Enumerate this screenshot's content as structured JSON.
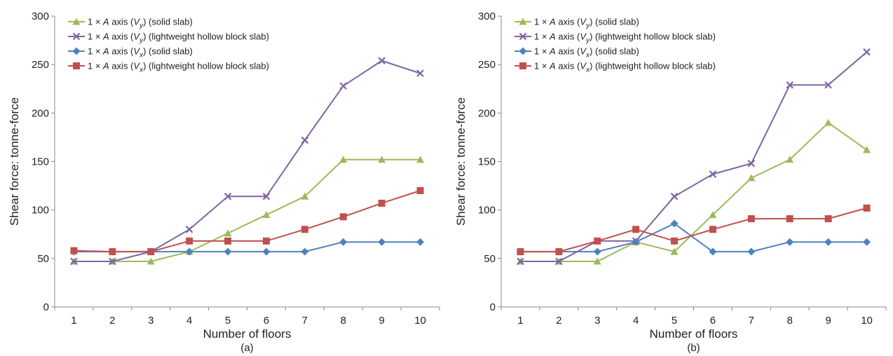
{
  "chart_data": [
    {
      "type": "line",
      "panel_label": "(a)",
      "xlabel": "Number of floors",
      "ylabel": "Shear force: tonne-force",
      "x": [
        1,
        2,
        3,
        4,
        5,
        6,
        7,
        8,
        9,
        10
      ],
      "xticks": [
        "1",
        "2",
        "3",
        "4",
        "5",
        "6",
        "7",
        "8",
        "9",
        "10"
      ],
      "ylim": [
        0,
        300
      ],
      "yticks": [
        "0",
        "50",
        "100",
        "150",
        "200",
        "250",
        "300"
      ],
      "grid": false,
      "legend_position": "top-left",
      "series": [
        {
          "name": "1 × A axis (Vy) (solid slab)",
          "prefix": "1 × ",
          "axis_letter": "A",
          "mid": " axis (",
          "sym": "V",
          "sub": "y",
          "suffix": ") (solid slab)",
          "color": "#9BBB59",
          "marker": "triangle",
          "values": [
            47,
            47,
            47,
            57,
            76,
            95,
            114,
            152,
            152,
            152
          ]
        },
        {
          "name": "1 × A axis (Vy) (lightweight hollow block slab)",
          "prefix": "1 × ",
          "axis_letter": "A",
          "mid": " axis (",
          "sym": "V",
          "sub": "y",
          "suffix": ") (lightweight hollow block slab)",
          "color": "#8064A2",
          "marker": "x",
          "values": [
            47,
            47,
            57,
            80,
            114,
            114,
            172,
            228,
            254,
            241
          ]
        },
        {
          "name": "1 × A axis (Vx) (solid slab)",
          "prefix": "1 × ",
          "axis_letter": "A",
          "mid": " axis (",
          "sym": "V",
          "sub": "x",
          "suffix": ") (solid slab)",
          "color": "#4F81BD",
          "marker": "diamond",
          "values": [
            57,
            57,
            57,
            57,
            57,
            57,
            57,
            67,
            67,
            67
          ]
        },
        {
          "name": "1 × A axis (Vx) (lightweight hollow block slab)",
          "prefix": "1 × ",
          "axis_letter": "A",
          "mid": " axis (",
          "sym": "V",
          "sub": "x",
          "suffix": ") (lightweight hollow block slab)",
          "color": "#C0504D",
          "marker": "square",
          "values": [
            58,
            57,
            57,
            68,
            68,
            68,
            80,
            93,
            107,
            120
          ]
        }
      ]
    },
    {
      "type": "line",
      "panel_label": "(b)",
      "xlabel": "Number of floors",
      "ylabel": "Shear force: tonne-force",
      "x": [
        1,
        2,
        3,
        4,
        5,
        6,
        7,
        8,
        9,
        10
      ],
      "xticks": [
        "1",
        "2",
        "3",
        "4",
        "5",
        "6",
        "7",
        "8",
        "9",
        "10"
      ],
      "ylim": [
        0,
        300
      ],
      "yticks": [
        "0",
        "50",
        "100",
        "150",
        "200",
        "250",
        "300"
      ],
      "grid": false,
      "legend_position": "top-left",
      "series": [
        {
          "name": "1 × A axis (Vy) (solid slab)",
          "prefix": "1 × ",
          "axis_letter": "A",
          "mid": " axis (",
          "sym": "V",
          "sub": "y",
          "suffix": ") (solid slab)",
          "color": "#9BBB59",
          "marker": "triangle",
          "values": [
            47,
            47,
            47,
            67,
            57,
            95,
            133,
            152,
            190,
            162
          ]
        },
        {
          "name": "1 × A axis (Vy) (lightweight hollow block slab)",
          "prefix": "1 × ",
          "axis_letter": "A",
          "mid": " axis (",
          "sym": "V",
          "sub": "y",
          "suffix": ") (lightweight hollow block slab)",
          "color": "#8064A2",
          "marker": "x",
          "values": [
            47,
            47,
            68,
            68,
            114,
            137,
            148,
            229,
            229,
            263
          ]
        },
        {
          "name": "1 × A axis (Vx) (solid slab)",
          "prefix": "1 × ",
          "axis_letter": "A",
          "mid": " axis (",
          "sym": "V",
          "sub": "x",
          "suffix": ") (solid slab)",
          "color": "#4F81BD",
          "marker": "diamond",
          "values": [
            57,
            57,
            57,
            67,
            86,
            57,
            57,
            67,
            67,
            67
          ]
        },
        {
          "name": "1 × A axis (Vx) (lightweight hollow block slab)",
          "prefix": "1 × ",
          "axis_letter": "A",
          "mid": " axis (",
          "sym": "V",
          "sub": "x",
          "suffix": ") (lightweight hollow block slab)",
          "color": "#C0504D",
          "marker": "square",
          "values": [
            57,
            57,
            68,
            80,
            68,
            80,
            91,
            91,
            91,
            102
          ]
        }
      ]
    }
  ]
}
